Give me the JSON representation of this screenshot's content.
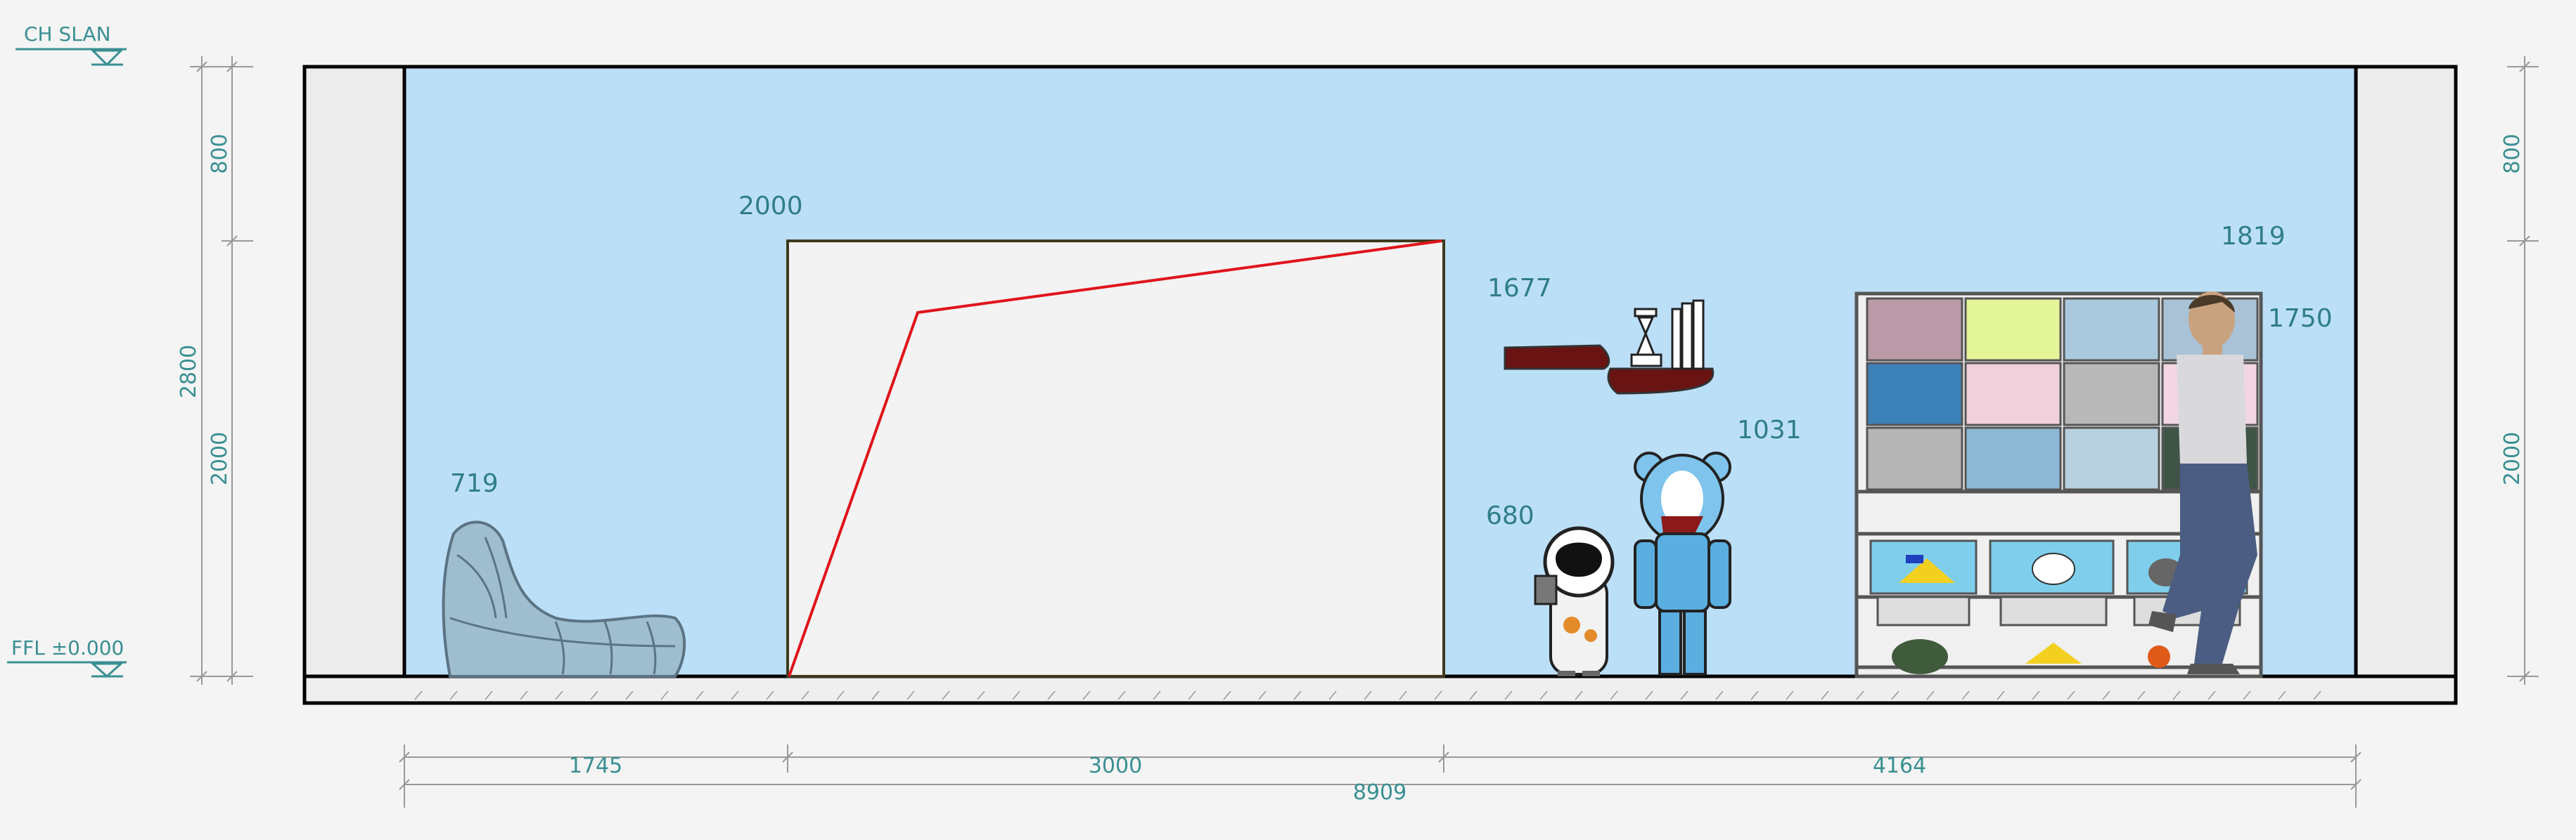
{
  "levels": {
    "ceiling_label": "CH SLAN",
    "floor_label": "FFL ±0.000"
  },
  "left_dimensions": {
    "total": "2800",
    "upper": "800",
    "lower": "2000"
  },
  "right_dimensions": {
    "upper": "800",
    "lower": "2000"
  },
  "object_heights": {
    "bean_bag": "719",
    "door": "2000",
    "shelf": "1677",
    "bearbrick": "1031",
    "astronaut": "680",
    "person": "1819",
    "bookcase": "1750"
  },
  "bottom_dimensions": {
    "segment_1": "1745",
    "segment_2": "3000",
    "segment_3": "4164",
    "total": "8909"
  },
  "colors": {
    "wall": "#bcdff8",
    "background": "#f4f4f4",
    "door_swing": "#e0141b",
    "dimension_text": "#3a8f92",
    "shelf": "#6a1313"
  }
}
